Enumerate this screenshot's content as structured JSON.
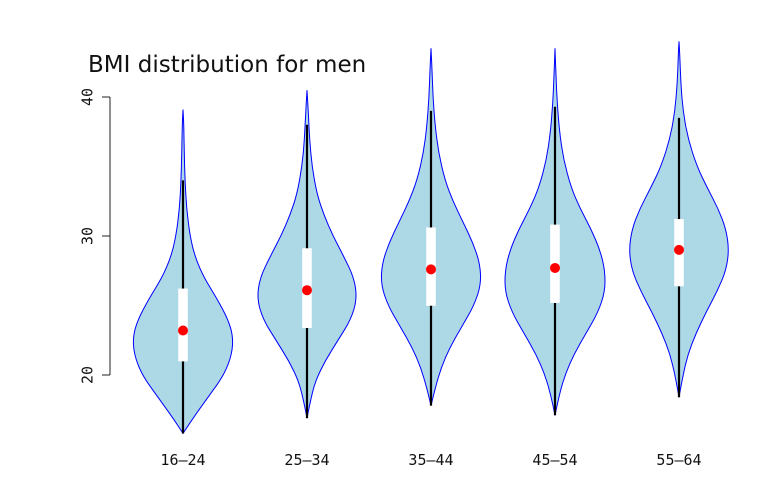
{
  "chart_data": {
    "type": "violin",
    "title": "BMI distribution for men",
    "xlabel": "",
    "ylabel": "",
    "categories": [
      "16–24",
      "25–34",
      "35–44",
      "45–54",
      "55–64"
    ],
    "yticks": [
      "20",
      "30",
      "40"
    ],
    "ylim": [
      16,
      40
    ],
    "colors": {
      "violin_fill": "#add8e6",
      "violin_outline": "#0000ff",
      "median_dot": "#ff0000",
      "box_fill": "#ffffff",
      "whisker": "#000000"
    },
    "series": [
      {
        "category": "16–24",
        "median": 23.2,
        "q1": 21.0,
        "q3": 26.2,
        "whisker_low": 15.8,
        "whisker_high": 34.0,
        "min": 15.8,
        "max": 39.1,
        "density": [
          [
            15.8,
            0.0
          ],
          [
            17.0,
            0.22
          ],
          [
            18.5,
            0.52
          ],
          [
            20.0,
            0.82
          ],
          [
            21.5,
            0.98
          ],
          [
            22.8,
            1.0
          ],
          [
            24.0,
            0.9
          ],
          [
            25.5,
            0.68
          ],
          [
            27.0,
            0.42
          ],
          [
            28.5,
            0.24
          ],
          [
            30.0,
            0.14
          ],
          [
            32.0,
            0.07
          ],
          [
            34.0,
            0.04
          ],
          [
            36.0,
            0.025
          ],
          [
            38.0,
            0.015
          ],
          [
            39.1,
            0.0
          ]
        ]
      },
      {
        "category": "25–34",
        "median": 26.1,
        "q1": 23.4,
        "q3": 29.1,
        "whisker_low": 16.9,
        "whisker_high": 38.0,
        "min": 16.9,
        "max": 40.5,
        "density": [
          [
            16.9,
            0.0
          ],
          [
            18.0,
            0.06
          ],
          [
            19.5,
            0.16
          ],
          [
            21.0,
            0.36
          ],
          [
            22.5,
            0.62
          ],
          [
            24.0,
            0.88
          ],
          [
            25.5,
            1.0
          ],
          [
            27.0,
            0.94
          ],
          [
            28.5,
            0.74
          ],
          [
            30.0,
            0.52
          ],
          [
            31.5,
            0.34
          ],
          [
            33.0,
            0.2
          ],
          [
            35.0,
            0.1
          ],
          [
            37.0,
            0.05
          ],
          [
            39.0,
            0.025
          ],
          [
            40.5,
            0.0
          ]
        ]
      },
      {
        "category": "35–44",
        "median": 27.6,
        "q1": 25.0,
        "q3": 30.6,
        "whisker_low": 17.8,
        "whisker_high": 39.0,
        "min": 17.8,
        "max": 43.5,
        "density": [
          [
            17.8,
            0.0
          ],
          [
            19.0,
            0.08
          ],
          [
            20.5,
            0.2
          ],
          [
            22.0,
            0.38
          ],
          [
            23.5,
            0.62
          ],
          [
            25.0,
            0.86
          ],
          [
            26.5,
            1.0
          ],
          [
            28.0,
            0.98
          ],
          [
            29.5,
            0.84
          ],
          [
            31.0,
            0.64
          ],
          [
            32.5,
            0.44
          ],
          [
            34.0,
            0.28
          ],
          [
            36.0,
            0.15
          ],
          [
            38.0,
            0.08
          ],
          [
            40.0,
            0.04
          ],
          [
            42.0,
            0.02
          ],
          [
            43.5,
            0.0
          ]
        ]
      },
      {
        "category": "45–54",
        "median": 27.7,
        "q1": 25.2,
        "q3": 30.8,
        "whisker_low": 17.1,
        "whisker_high": 39.3,
        "min": 17.1,
        "max": 43.5,
        "density": [
          [
            17.1,
            0.0
          ],
          [
            18.5,
            0.08
          ],
          [
            20.0,
            0.2
          ],
          [
            21.5,
            0.38
          ],
          [
            23.0,
            0.62
          ],
          [
            24.5,
            0.86
          ],
          [
            26.0,
            1.0
          ],
          [
            27.5,
            1.0
          ],
          [
            29.0,
            0.9
          ],
          [
            30.5,
            0.72
          ],
          [
            32.0,
            0.5
          ],
          [
            33.5,
            0.32
          ],
          [
            35.5,
            0.17
          ],
          [
            37.5,
            0.09
          ],
          [
            39.5,
            0.045
          ],
          [
            41.5,
            0.02
          ],
          [
            43.5,
            0.0
          ]
        ]
      },
      {
        "category": "55–64",
        "median": 29.0,
        "q1": 26.4,
        "q3": 31.2,
        "whisker_low": 18.4,
        "whisker_high": 38.5,
        "min": 18.4,
        "max": 44.0,
        "density": [
          [
            18.4,
            0.0
          ],
          [
            20.0,
            0.08
          ],
          [
            21.5,
            0.18
          ],
          [
            23.0,
            0.34
          ],
          [
            24.5,
            0.54
          ],
          [
            26.0,
            0.76
          ],
          [
            27.5,
            0.94
          ],
          [
            29.0,
            1.0
          ],
          [
            30.5,
            0.94
          ],
          [
            32.0,
            0.78
          ],
          [
            33.5,
            0.56
          ],
          [
            35.0,
            0.36
          ],
          [
            37.0,
            0.18
          ],
          [
            39.0,
            0.08
          ],
          [
            41.0,
            0.035
          ],
          [
            43.0,
            0.015
          ],
          [
            44.0,
            0.0
          ]
        ]
      }
    ]
  }
}
